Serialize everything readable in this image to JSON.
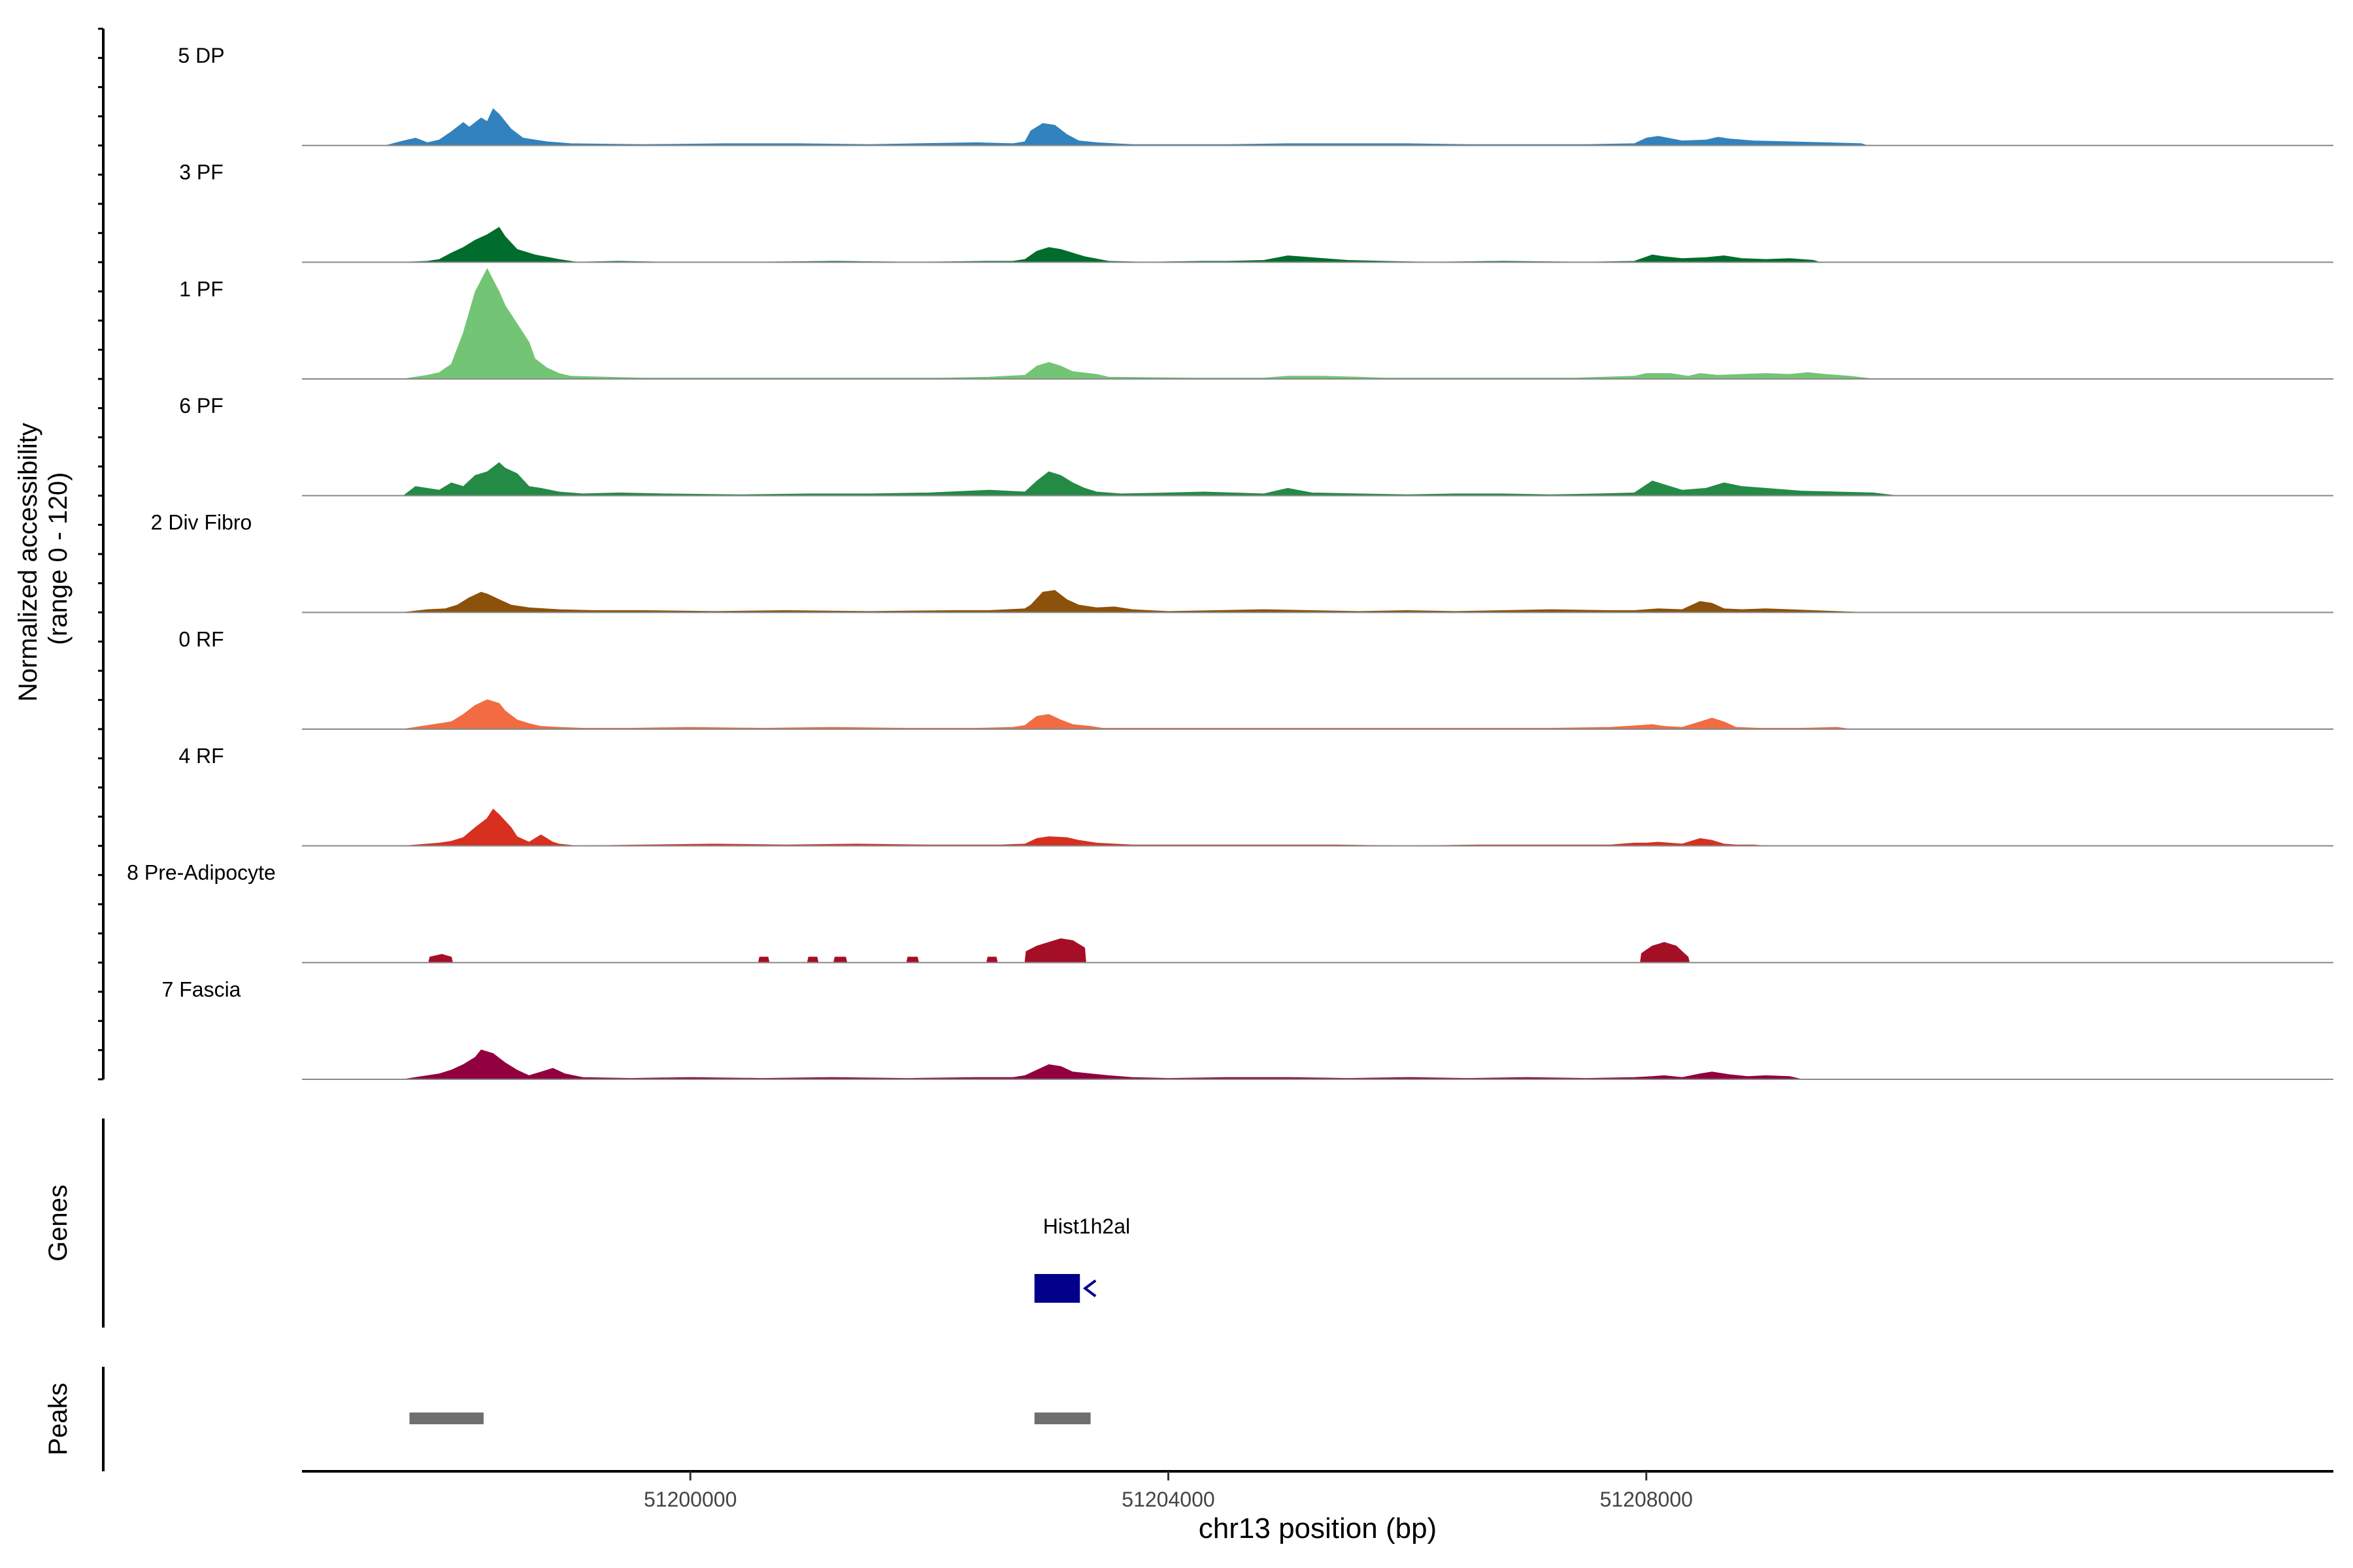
{
  "chart_data": {
    "type": "area",
    "title": "",
    "ylabel_line1": "Normalized accessibility",
    "ylabel_line2": "(range 0 - 120)",
    "xlabel": "chr13 position (bp)",
    "chromosome": "chr13",
    "xlim": [
      51196750,
      51213750
    ],
    "ylim": [
      0,
      120
    ],
    "x_ticks": [
      {
        "value": 51200000,
        "label": "51200000"
      },
      {
        "value": 51204000,
        "label": "51204000"
      },
      {
        "value": 51208000,
        "label": "51208000"
      }
    ],
    "genes_label": "Genes",
    "peaks_label": "Peaks",
    "gene": {
      "name": "Hist1h2al",
      "start": 51202880,
      "end": 51203260,
      "strand": "-",
      "color": "#00008B"
    },
    "peaks": [
      {
        "start": 51197650,
        "end": 51198270
      },
      {
        "start": 51202880,
        "end": 51203350
      }
    ],
    "peak_color": "#6F6F6F",
    "series": [
      {
        "name": "5 DP",
        "color": "#3182BD",
        "x": [
          51197450,
          51197600,
          51197700,
          51197800,
          51197900,
          51198000,
          51198100,
          51198150,
          51198250,
          51198300,
          51198350,
          51198400,
          51198500,
          51198600,
          51198800,
          51199000,
          51199600,
          51200300,
          51200900,
          51201500,
          51201900,
          51202400,
          51202700,
          51202800,
          51202850,
          51202950,
          51203050,
          51203150,
          51203250,
          51203400,
          51203550,
          51203700,
          51204000,
          51204500,
          51205000,
          51205500,
          51206000,
          51206500,
          51207000,
          51207500,
          51207900,
          51208000,
          51208100,
          51208300,
          51208500,
          51208600,
          51208700,
          51208900,
          51209200,
          51209500,
          51209800,
          51209850
        ],
        "values": [
          0,
          5,
          8,
          3,
          6,
          15,
          25,
          20,
          30,
          26,
          40,
          34,
          18,
          8,
          4,
          2,
          1,
          2,
          2,
          1,
          2,
          3,
          2,
          4,
          16,
          24,
          22,
          12,
          5,
          3,
          2,
          1,
          1,
          1,
          2,
          2,
          2,
          1,
          1,
          1,
          2,
          8,
          10,
          5,
          6,
          9,
          7,
          5,
          4,
          3,
          2,
          0
        ]
      },
      {
        "name": "3 PF",
        "color": "#006D2C",
        "x": [
          51197600,
          51197800,
          51197900,
          51198000,
          51198100,
          51198200,
          51198300,
          51198400,
          51198450,
          51198550,
          51198700,
          51198900,
          51199050,
          51199400,
          51199800,
          51200500,
          51201200,
          51201900,
          51202500,
          51202700,
          51202800,
          51202900,
          51203000,
          51203100,
          51203200,
          51203300,
          51203500,
          51203800,
          51204300,
          51204500,
          51204800,
          51205000,
          51205100,
          51205300,
          51205500,
          51205800,
          51206200,
          51206800,
          51207500,
          51207900,
          51208050,
          51208150,
          51208300,
          51208500,
          51208650,
          51208800,
          51209000,
          51209200,
          51209400,
          51209450
        ],
        "values": [
          0,
          1,
          3,
          10,
          16,
          24,
          30,
          38,
          28,
          14,
          8,
          3,
          0,
          1,
          0,
          0,
          1,
          0,
          1,
          1,
          3,
          12,
          16,
          14,
          10,
          6,
          1,
          0,
          1,
          1,
          2,
          7,
          6,
          4,
          2,
          1,
          0,
          1,
          0,
          1,
          8,
          6,
          4,
          5,
          7,
          4,
          3,
          4,
          2,
          0
        ]
      },
      {
        "name": "1 PF",
        "color": "#74C476",
        "x": [
          51197600,
          51197800,
          51197900,
          51198000,
          51198100,
          51198200,
          51198300,
          51198400,
          51198450,
          51198550,
          51198650,
          51198700,
          51198800,
          51198900,
          51199000,
          51199300,
          51199600,
          51200000,
          51200700,
          51201400,
          51202100,
          51202500,
          51202800,
          51202900,
          51203000,
          51203100,
          51203200,
          51203400,
          51203500,
          51204200,
          51204800,
          51205000,
          51205300,
          51205600,
          51205800,
          51206200,
          51206800,
          51207400,
          51207900,
          51208000,
          51208200,
          51208350,
          51208450,
          51208600,
          51209000,
          51209200,
          51209350,
          51209500,
          51209700,
          51209900
        ],
        "values": [
          0,
          4,
          7,
          16,
          50,
          95,
          120,
          95,
          80,
          60,
          40,
          22,
          12,
          6,
          3,
          2,
          1,
          1,
          1,
          1,
          1,
          2,
          4,
          14,
          18,
          14,
          8,
          5,
          2,
          1,
          1,
          3,
          3,
          2,
          1,
          1,
          1,
          1,
          3,
          6,
          6,
          3,
          6,
          4,
          6,
          5,
          7,
          5,
          3,
          0
        ]
      },
      {
        "name": "6 PF",
        "color": "#238B45",
        "x": [
          51197600,
          51197700,
          51197900,
          51198000,
          51198100,
          51198200,
          51198300,
          51198400,
          51198450,
          51198550,
          51198650,
          51198750,
          51198900,
          51199100,
          51199400,
          51199800,
          51200400,
          51201000,
          51201500,
          51202000,
          51202500,
          51202800,
          51202900,
          51203000,
          51203100,
          51203200,
          51203300,
          51203400,
          51203600,
          51204000,
          51204300,
          51204800,
          51205000,
          51205200,
          51205600,
          51206000,
          51206400,
          51206800,
          51207200,
          51207600,
          51207900,
          51208050,
          51208150,
          51208300,
          51208500,
          51208650,
          51208800,
          51209000,
          51209300,
          51209600,
          51209900,
          51210100
        ],
        "values": [
          0,
          10,
          6,
          14,
          10,
          22,
          26,
          36,
          30,
          24,
          10,
          8,
          4,
          2,
          3,
          2,
          1,
          2,
          2,
          3,
          6,
          4,
          16,
          26,
          22,
          14,
          8,
          4,
          2,
          3,
          4,
          2,
          8,
          3,
          2,
          1,
          2,
          2,
          1,
          2,
          3,
          16,
          12,
          6,
          8,
          14,
          10,
          8,
          5,
          4,
          3,
          0
        ]
      },
      {
        "name": "2 Div Fibro",
        "color": "#8C510A",
        "x": [
          51197600,
          51197800,
          51197950,
          51198050,
          51198150,
          51198250,
          51198300,
          51198400,
          51198500,
          51198650,
          51198900,
          51199200,
          51199600,
          51200200,
          51200800,
          51201500,
          51202200,
          51202500,
          51202800,
          51202850,
          51202950,
          51203050,
          51203150,
          51203250,
          51203400,
          51203550,
          51203700,
          51204000,
          51204400,
          51204800,
          51205200,
          51205600,
          51206000,
          51206400,
          51206800,
          51207200,
          51207700,
          51207900,
          51208100,
          51208300,
          51208450,
          51208550,
          51208650,
          51208800,
          51209000,
          51209200,
          51209400,
          51209600,
          51209800
        ],
        "values": [
          0,
          3,
          4,
          8,
          16,
          22,
          20,
          14,
          8,
          5,
          3,
          2,
          2,
          1,
          2,
          1,
          2,
          2,
          4,
          8,
          22,
          24,
          14,
          8,
          5,
          6,
          3,
          1,
          2,
          3,
          2,
          1,
          2,
          1,
          2,
          3,
          2,
          2,
          4,
          3,
          12,
          10,
          4,
          3,
          4,
          3,
          2,
          1,
          0
        ]
      },
      {
        "name": "0 RF",
        "color": "#F16C43",
        "x": [
          51197600,
          51197800,
          51198000,
          51198100,
          51198200,
          51198300,
          51198400,
          51198450,
          51198550,
          51198650,
          51198750,
          51198900,
          51199100,
          51199500,
          51200000,
          51200600,
          51201200,
          51201800,
          51202400,
          51202700,
          51202800,
          51202900,
          51203000,
          51203100,
          51203200,
          51203350,
          51203450,
          51203700,
          51204200,
          51204800,
          51205400,
          51206000,
          51206600,
          51207200,
          51207700,
          51207950,
          51208050,
          51208150,
          51208300,
          51208450,
          51208550,
          51208650,
          51208750,
          51208950,
          51209300,
          51209600,
          51209700
        ],
        "values": [
          0,
          4,
          8,
          16,
          26,
          32,
          28,
          20,
          10,
          6,
          3,
          2,
          1,
          1,
          2,
          1,
          2,
          1,
          1,
          2,
          4,
          14,
          16,
          10,
          5,
          3,
          1,
          1,
          1,
          1,
          1,
          1,
          1,
          1,
          2,
          4,
          5,
          3,
          2,
          8,
          12,
          8,
          2,
          1,
          1,
          2,
          0
        ]
      },
      {
        "name": "4 RF",
        "color": "#D7301F",
        "x": [
          51197600,
          51197900,
          51198000,
          51198100,
          51198200,
          51198300,
          51198350,
          51198400,
          51198500,
          51198550,
          51198650,
          51198700,
          51198750,
          51198800,
          51198850,
          51198900,
          51199050,
          51199600,
          51200200,
          51200800,
          51201400,
          51202000,
          51202600,
          51202800,
          51202900,
          51203000,
          51203150,
          51203250,
          51203400,
          51203550,
          51203700,
          51204200,
          51204800,
          51205400,
          51206000,
          51206600,
          51207200,
          51207700,
          51207900,
          51208000,
          51208100,
          51208300,
          51208450,
          51208550,
          51208650,
          51208750,
          51208900,
          51209000
        ],
        "values": [
          0,
          3,
          5,
          9,
          20,
          30,
          40,
          34,
          20,
          10,
          4,
          8,
          12,
          8,
          4,
          2,
          0,
          1,
          2,
          1,
          2,
          1,
          1,
          2,
          8,
          10,
          9,
          6,
          3,
          2,
          1,
          1,
          1,
          1,
          0,
          1,
          1,
          1,
          3,
          3,
          4,
          2,
          8,
          6,
          2,
          1,
          1,
          0
        ]
      },
      {
        "name": "8 Pre-Adipocyte",
        "color": "#A50F26",
        "steps": true,
        "x": [
          51197810,
          51197820,
          51197920,
          51198000,
          51198010,
          51200570,
          51200580,
          51200650,
          51200660,
          51200980,
          51200990,
          51201060,
          51201070,
          51201200,
          51201210,
          51201300,
          51201310,
          51201810,
          51201820,
          51201900,
          51201910,
          51202480,
          51202490,
          51202560,
          51202570,
          51202800,
          51202810,
          51202900,
          51203000,
          51203100,
          51203200,
          51203300,
          51203310,
          51207950,
          51207960,
          51208050,
          51208150,
          51208250,
          51208300,
          51208350,
          51208360
        ],
        "values": [
          0,
          6,
          9,
          6,
          0,
          0,
          6,
          6,
          0,
          0,
          6,
          6,
          0,
          0,
          6,
          6,
          0,
          0,
          6,
          6,
          0,
          0,
          6,
          6,
          0,
          0,
          12,
          18,
          22,
          26,
          24,
          16,
          0,
          0,
          10,
          18,
          22,
          18,
          12,
          6,
          0
        ]
      },
      {
        "name": "7 Fascia",
        "color": "#91003F",
        "x": [
          51197600,
          51197800,
          51197900,
          51198000,
          51198100,
          51198200,
          51198250,
          51198350,
          51198450,
          51198550,
          51198650,
          51198750,
          51198850,
          51198950,
          51199100,
          51199500,
          51200000,
          51200600,
          51201200,
          51201800,
          51202400,
          51202700,
          51202800,
          51202900,
          51203000,
          51203100,
          51203200,
          51203350,
          51203500,
          51203700,
          51204000,
          51204500,
          51205000,
          51205500,
          51206000,
          51206500,
          51207000,
          51207500,
          51207900,
          51208050,
          51208150,
          51208300,
          51208450,
          51208550,
          51208700,
          51208850,
          51209000,
          51209200,
          51209300
        ],
        "values": [
          0,
          4,
          6,
          10,
          16,
          24,
          32,
          28,
          18,
          10,
          4,
          8,
          12,
          6,
          2,
          1,
          2,
          1,
          2,
          1,
          2,
          2,
          4,
          10,
          16,
          14,
          8,
          6,
          4,
          2,
          1,
          2,
          2,
          1,
          2,
          1,
          2,
          1,
          2,
          3,
          4,
          2,
          6,
          8,
          5,
          3,
          4,
          3,
          0
        ]
      }
    ]
  }
}
